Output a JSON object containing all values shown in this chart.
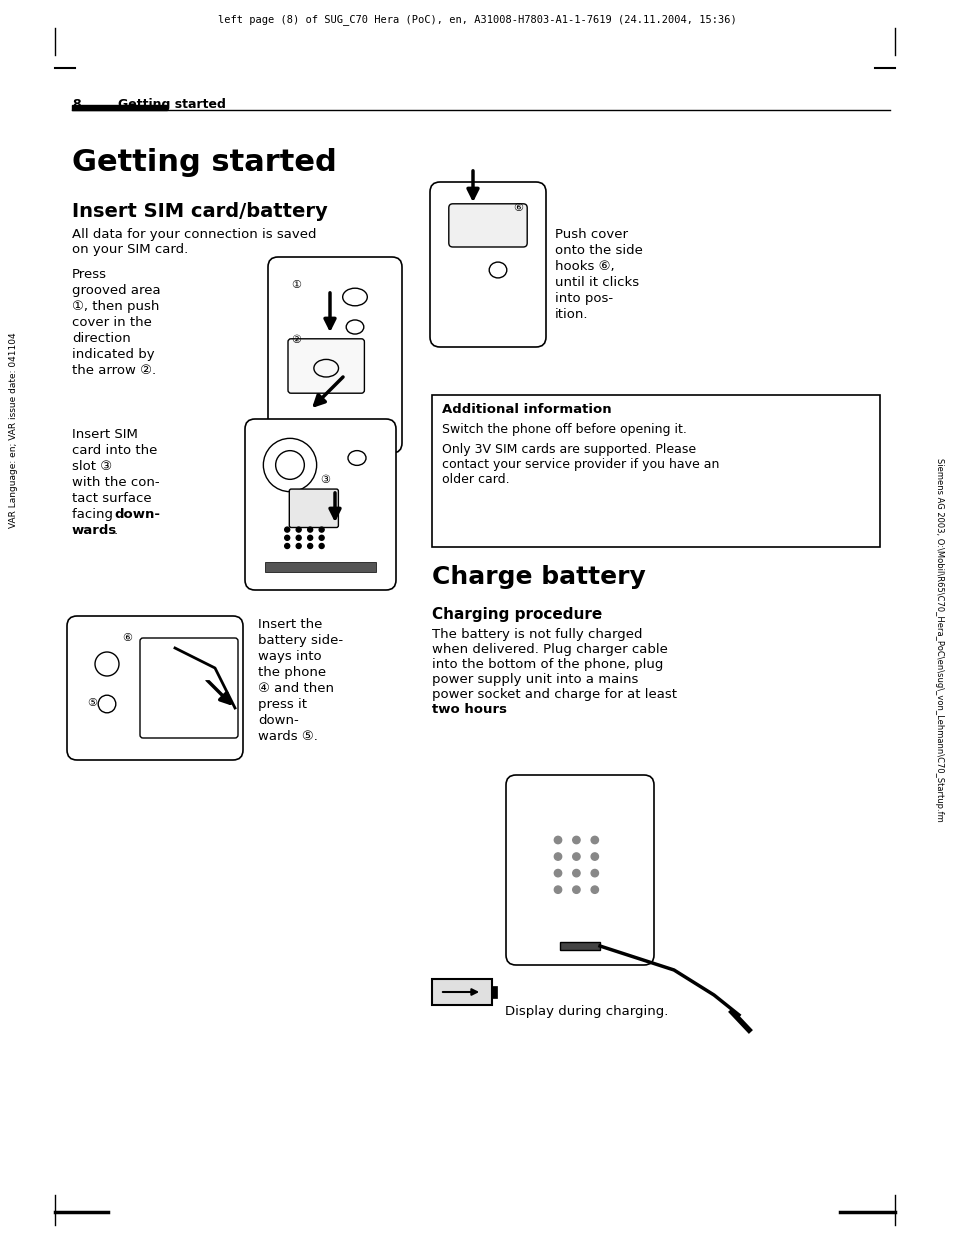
{
  "bg_color": "#ffffff",
  "page_width": 9.54,
  "page_height": 12.46,
  "header_text": "left page (8) of SUG_C70 Hera (PoC), en, A31008-H7803-A1-1-7619 (24.11.2004, 15:36)",
  "page_num": "8",
  "section_header": "Getting started",
  "main_title": "Getting started",
  "sub_title1": "Insert SIM card/battery",
  "sub_title2": "Charge battery",
  "sub_title3": "Charging procedure",
  "left_sidebar_text": "VAR Language: en; VAR issue date: 041104",
  "right_sidebar_text": "Siemens AG 2003, O:\\Mobil\\R65\\C70_Hera_PoC\\en\\sug\\_von_Lehmann\\C70_Startup.fm",
  "para1_l1": "All data for your connection is saved",
  "para1_l2": "on your SIM card.",
  "para2_l1": "Press",
  "para2_l2": "grooved area",
  "para2_l3": "①, then push",
  "para2_l4": "cover in the",
  "para2_l5": "direction",
  "para2_l6": "indicated by",
  "para2_l7": "the arrow ②.",
  "para3_l1": "Insert SIM",
  "para3_l2": "card into the",
  "para3_l3": "slot ③",
  "para3_l4": "with the con-",
  "para3_l5": "tact surface",
  "para3_l6": "facing ",
  "para3_bold": "down-",
  "para3_l7": "wards",
  "para4_l1": "Insert the",
  "para4_l2": "battery side-",
  "para4_l3": "ways into",
  "para4_l4": "the phone",
  "para4_l5": "④ and then",
  "para4_l6": "press it",
  "para4_l7": "down-",
  "para4_l8": "wards ⑤.",
  "para5_l1": "Push cover",
  "para5_l2": "onto the side",
  "para5_l3": "hooks ⑥,",
  "para5_l4": "until it clicks",
  "para5_l5": "into pos-",
  "para5_l6": "ition.",
  "additional_info_title": "Additional information",
  "additional_info_text1": "Switch the phone off before opening it.",
  "additional_info_text2": "Only 3V SIM cards are supported. Please",
  "additional_info_text3": "contact your service provider if you have an",
  "additional_info_text4": "older card.",
  "charge_para_l1": "The battery is not fully charged",
  "charge_para_l2": "when delivered. Plug charger cable",
  "charge_para_l3": "into the bottom of the phone, plug",
  "charge_para_l4": "power supply unit into a mains",
  "charge_para_l5": "power socket and charge for at least",
  "charge_para_l6a": "two hours",
  "charge_para_l6b": ".",
  "display_text": "Display during charging."
}
